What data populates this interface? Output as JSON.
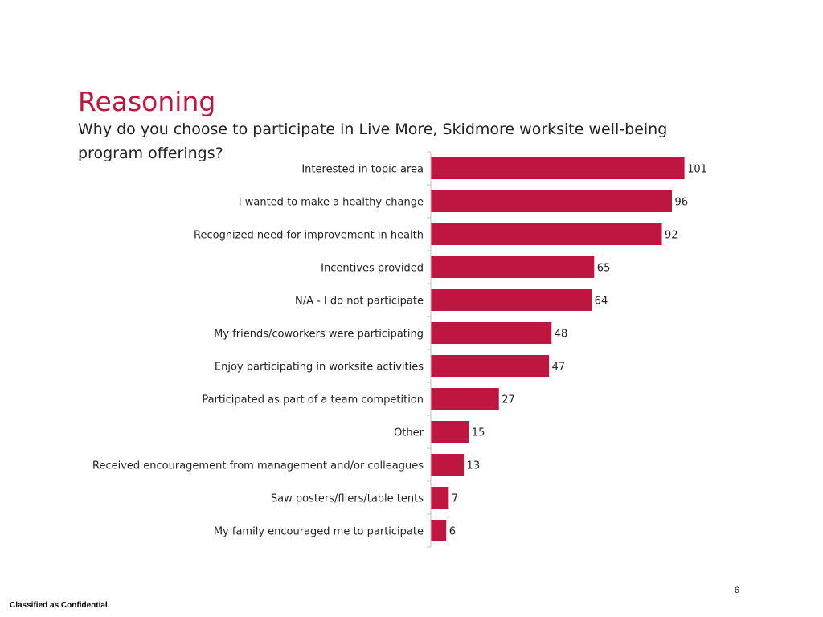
{
  "slide": {
    "title": "Reasoning",
    "subtitle": "Why do you choose to participate in Live More, Skidmore worksite well-being program offerings?",
    "page_number": "6",
    "classification": "Classified as Confidential"
  },
  "colors": {
    "title": "#be1640",
    "bar": "#be1640",
    "axis": "#bfbfbf",
    "text": "#222222"
  },
  "chart_data": {
    "type": "bar",
    "orientation": "horizontal",
    "categories": [
      "Interested in topic area",
      "I wanted to make a healthy change",
      "Recognized need for improvement in health",
      "Incentives provided",
      "N/A - I do not participate",
      "My friends/coworkers were participating",
      "Enjoy participating in worksite activities",
      "Participated as part of a team competition",
      "Other",
      "Received encouragement from management and/or colleagues",
      "Saw posters/fliers/table tents",
      "My family encouraged me to participate"
    ],
    "values": [
      101,
      96,
      92,
      65,
      64,
      48,
      47,
      27,
      15,
      13,
      7,
      6
    ],
    "data_labels": true,
    "gridlines": false,
    "legend": "none"
  }
}
